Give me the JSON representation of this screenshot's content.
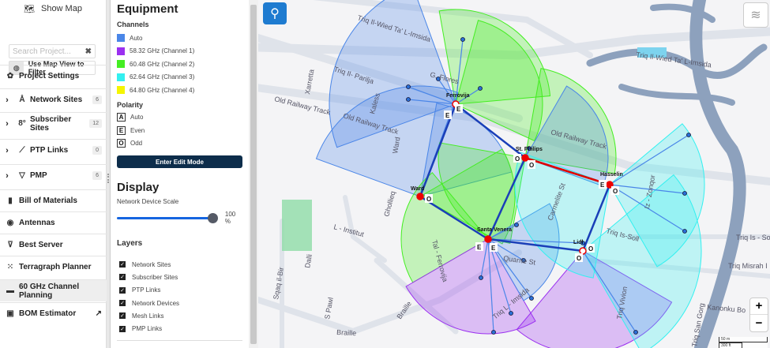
{
  "sidebar": {
    "show_map": "Show Map",
    "search_placeholder": "Search Project...",
    "filter_button": "Use Map View to Filter",
    "items": [
      {
        "label": "Project Settings",
        "icon": "gear-icon"
      },
      {
        "label": "Network Sites",
        "icon": "tower-icon",
        "count": "6",
        "expandable": true
      },
      {
        "label": "Subscriber Sites",
        "icon": "subscriber-icon",
        "count": "12",
        "expandable": true
      },
      {
        "label": "PTP Links",
        "icon": "link-icon",
        "count": "0",
        "expandable": true
      },
      {
        "label": "PMP",
        "icon": "pmp-icon",
        "count": "6",
        "expandable": true
      },
      {
        "label": "Bill of Materials",
        "icon": "document-icon"
      },
      {
        "label": "Antennas",
        "icon": "antenna-icon"
      },
      {
        "label": "Best Server",
        "icon": "best-server-icon"
      },
      {
        "label": "Terragraph Planner",
        "icon": "terragraph-icon"
      },
      {
        "label": "60 GHz Channel Planning",
        "icon": "monitor-icon",
        "active": true
      },
      {
        "label": "BOM Estimator",
        "icon": "estimator-icon",
        "external": true
      }
    ]
  },
  "panel": {
    "equipment_title": "Equipment",
    "channels_title": "Channels",
    "channels": [
      {
        "label": "Auto",
        "color": "#4a86e8"
      },
      {
        "label": "58.32 GHz (Channel 1)",
        "color": "#9b30f0"
      },
      {
        "label": "60.48 GHz (Channel 2)",
        "color": "#44ee22"
      },
      {
        "label": "62.64 GHz (Channel 3)",
        "color": "#33f0f0"
      },
      {
        "label": "64.80 GHz (Channel 4)",
        "color": "#f5f500"
      }
    ],
    "polarity_title": "Polarity",
    "polarity": [
      {
        "glyph": "A",
        "label": "Auto"
      },
      {
        "glyph": "E",
        "label": "Even"
      },
      {
        "glyph": "O",
        "label": "Odd"
      }
    ],
    "edit_button": "Enter Edit Mode",
    "display_title": "Display",
    "scale_label": "Network Device Scale",
    "scale_value": "100 %",
    "scale_percent": 100,
    "layers_title": "Layers",
    "layers": [
      {
        "label": "Network Sites",
        "checked": true
      },
      {
        "label": "Subscriber Sites",
        "checked": true
      },
      {
        "label": "PTP Links",
        "checked": true
      },
      {
        "label": "Network Devices",
        "checked": true
      },
      {
        "label": "Mesh Links",
        "checked": true
      },
      {
        "label": "PMP Links",
        "checked": true
      }
    ]
  },
  "map": {
    "sites": [
      "Ferrovija",
      "St. Philips",
      "Ward",
      "Santa Venera",
      "Lidl",
      "Hasselin"
    ],
    "streets": [
      "Triq Il-Wied Ta' L-Imsida",
      "Triq Il- Parilja",
      "Old Railway Track",
      "Old Railway Track",
      "Xarretta",
      "Kaless",
      "G. Flores",
      "Ward",
      "Tal - Ferrovija",
      "L - Institut",
      "Ghollieq",
      "Dalli",
      "Sqaq il-Bir",
      "S Pawl",
      "Braille",
      "Braille",
      "Quarrie St",
      "Triq L - Imsida",
      "Triq Vivion",
      "Triq Is-Soll",
      "Iz - Zonqor",
      "Carmelite St",
      "Triq Is - So",
      "Triq Misrah I",
      "Kanonku Bo",
      "Triq San Gorg",
      "Triq Il-Wied Ta' L-Imsida",
      "Old Railway Track"
    ],
    "polarity_tags": [
      "E",
      "E",
      "O",
      "O",
      "O",
      "E",
      "E",
      "E",
      "O",
      "O"
    ],
    "scale_labels": [
      "50 m",
      "300 ft"
    ],
    "zoom_in": "+",
    "zoom_out": "−",
    "colors": {
      "auto": "#4a86e8",
      "ch1": "#9b30f0",
      "ch2": "#44ee22",
      "ch3": "#33f0f0",
      "mesh_link": "#1a3fb8",
      "ptp_link": "#e00000"
    }
  }
}
